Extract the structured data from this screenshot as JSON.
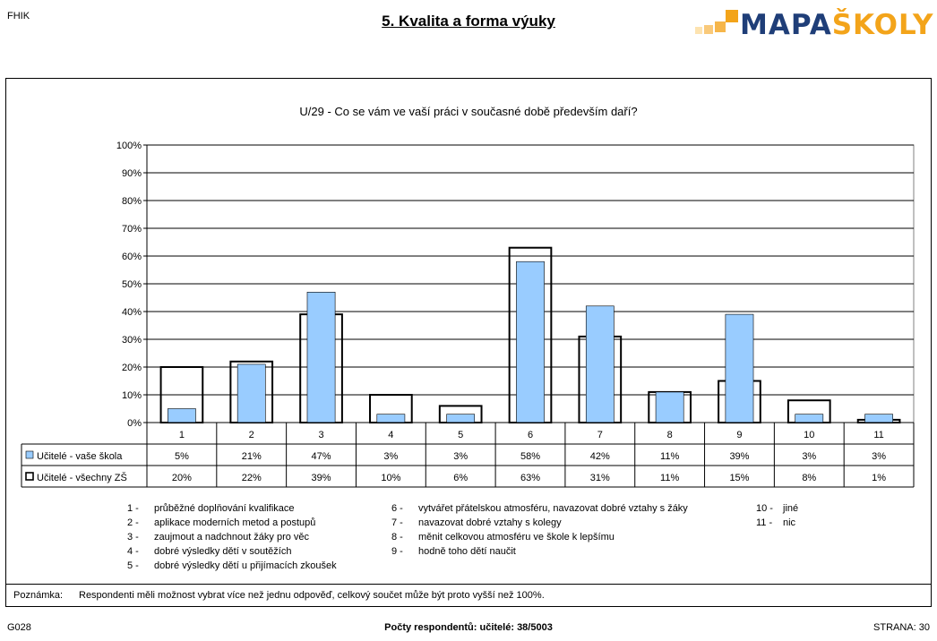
{
  "header": {
    "left_code": "FHIK",
    "title": "5. Kvalita a forma výuky",
    "logo_text_main": "MAPA",
    "logo_text_accent": "ŠKOLY",
    "colors": {
      "logo_blue": "#1f3e78",
      "logo_orange": "#f3a41a"
    }
  },
  "chart_data": {
    "type": "bar",
    "title": "U/29 - Co se vám ve vaší práci v současné době především daří?",
    "categories": [
      "1",
      "2",
      "3",
      "4",
      "5",
      "6",
      "7",
      "8",
      "9",
      "10",
      "11"
    ],
    "series": [
      {
        "name": "Učitelé - vaše škola",
        "values": [
          5,
          21,
          47,
          3,
          3,
          58,
          42,
          11,
          39,
          3,
          3
        ],
        "labels": [
          "5%",
          "21%",
          "47%",
          "3%",
          "3%",
          "58%",
          "42%",
          "11%",
          "39%",
          "3%",
          "3%"
        ],
        "color": "#99ccff",
        "style": "filled"
      },
      {
        "name": "Učitelé - všechny ZŠ",
        "values": [
          20,
          22,
          39,
          10,
          6,
          63,
          31,
          11,
          15,
          8,
          1
        ],
        "labels": [
          "20%",
          "22%",
          "39%",
          "10%",
          "6%",
          "63%",
          "31%",
          "11%",
          "15%",
          "8%",
          "1%"
        ],
        "color": "#ffffff",
        "style": "outline"
      }
    ],
    "ylim": [
      0,
      100
    ],
    "yticks": [
      "0%",
      "10%",
      "20%",
      "30%",
      "40%",
      "50%",
      "60%",
      "70%",
      "80%",
      "90%",
      "100%"
    ],
    "grid": true,
    "data_table": true
  },
  "legend_items": [
    {
      "num": "1",
      "text": "průběžné doplňování kvalifikace"
    },
    {
      "num": "2",
      "text": "aplikace moderních metod a postupů"
    },
    {
      "num": "3",
      "text": "zaujmout a nadchnout žáky pro věc"
    },
    {
      "num": "4",
      "text": "dobré výsledky dětí v soutěžích"
    },
    {
      "num": "5",
      "text": "dobré výsledky dětí u přijímacích zkoušek"
    },
    {
      "num": "6",
      "text": "vytvářet přátelskou atmosféru, navazovat dobré vztahy s žáky"
    },
    {
      "num": "7",
      "text": "navazovat dobré vztahy s kolegy"
    },
    {
      "num": "8",
      "text": "měnit celkovou atmosféru ve škole k lepšímu"
    },
    {
      "num": "9",
      "text": "hodně toho dětí naučit"
    },
    {
      "num": "10",
      "text": "jiné"
    },
    {
      "num": "11",
      "text": "nic"
    }
  ],
  "note": {
    "label": "Poznámka:",
    "text": "Respondenti měli možnost vybrat více než jednu odpověď, celkový součet může být proto vyšší než 100%."
  },
  "footer": {
    "left": "G028",
    "center": "Počty respondentů:   učitelé: 38/5003",
    "right": "STRANA: 30"
  }
}
